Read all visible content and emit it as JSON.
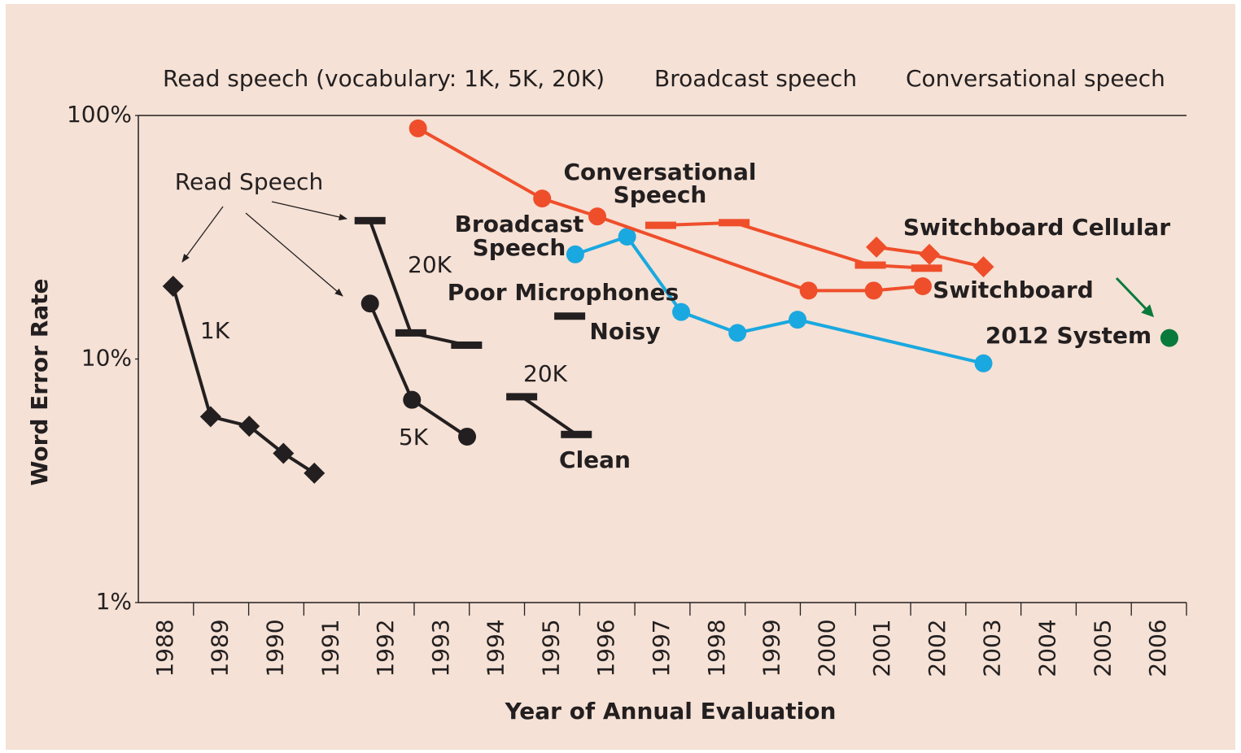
{
  "chart_data": {
    "type": "line",
    "log_y": true,
    "ylabel": "Word Error Rate",
    "xlabel": "Year of Annual Evaluation",
    "xlim": [
      1987.5,
      2006.5
    ],
    "xticks": [
      1988,
      1989,
      1990,
      1991,
      1992,
      1993,
      1994,
      1995,
      1996,
      1997,
      1998,
      1999,
      2000,
      2001,
      2002,
      2003,
      2004,
      2005,
      2006
    ],
    "ylim": [
      1,
      100
    ],
    "yticks": [
      {
        "value": 1,
        "label": "1%"
      },
      {
        "value": 10,
        "label": "10%"
      },
      {
        "value": 100,
        "label": "100%"
      }
    ],
    "legend": [
      {
        "text": "Read speech (vocabulary: 1K, 5K, 20K)",
        "color": "#231f20"
      },
      {
        "text": "Broadcast speech",
        "color": "#1aa8e0"
      },
      {
        "text": "Conversational speech",
        "color": "#ef4e2b"
      }
    ],
    "series": [
      {
        "marker": "diamond",
        "color": "#231f20",
        "x": [
          1988.13,
          1988.81,
          1989.51,
          1990.13,
          1990.69
        ],
        "values": [
          19.9,
          5.8,
          5.3,
          4.1,
          3.4
        ]
      },
      {
        "marker": "circle",
        "color": "#231f20",
        "x": [
          1991.7,
          1992.46,
          1993.46
        ],
        "values": [
          16.9,
          6.8,
          4.8
        ]
      },
      {
        "marker": "dash",
        "color": "#231f20",
        "x": [
          1991.7,
          1992.44,
          1993.45
        ],
        "values": [
          37,
          12.8,
          11.4
        ]
      },
      {
        "marker": "dash",
        "color": "#231f20",
        "x": [
          1995.32
        ],
        "values": [
          15
        ]
      },
      {
        "marker": "dash",
        "color": "#231f20",
        "x": [
          1994.45,
          1995.44
        ],
        "values": [
          7.0,
          4.9
        ]
      },
      {
        "marker": "circle",
        "color": "#1aa8e0",
        "x": [
          1995.42,
          1996.36,
          1997.34,
          1998.36,
          1999.45,
          2002.82
        ],
        "values": [
          26.9,
          31.8,
          15.6,
          12.8,
          14.5,
          9.6
        ]
      },
      {
        "marker": "circle",
        "color": "#ef4e2b",
        "x": [
          1992.57,
          1994.82,
          1995.82,
          1999.65,
          2000.83,
          2001.72
        ],
        "values": [
          88.5,
          45.6,
          38.5,
          19.1,
          19.1,
          19.9
        ]
      },
      {
        "marker": "dash",
        "color": "#ef4e2b",
        "x": [
          1996.97,
          1998.3,
          2000.77,
          2001.79
        ],
        "values": [
          35.4,
          36.3,
          24.3,
          23.6
        ]
      },
      {
        "marker": "diamond",
        "color": "#ef4e2b",
        "x": [
          2000.88,
          2001.84,
          2002.82
        ],
        "values": [
          28.8,
          26.9,
          23.9
        ]
      },
      {
        "marker": "circle",
        "color": "#0a7a3c",
        "x": [
          2006.19
        ],
        "values": [
          12.2
        ]
      }
    ],
    "annotations": [
      {
        "text": "Read Speech",
        "color": "#231f20",
        "bold": false
      },
      {
        "text": "1K",
        "color": "#231f20",
        "bold": false
      },
      {
        "text": "20K",
        "color": "#231f20",
        "bold": false
      },
      {
        "text": "5K",
        "color": "#231f20",
        "bold": false
      },
      {
        "text": "20K",
        "color": "#231f20",
        "bold": false
      },
      {
        "text": "Poor Microphones",
        "color": "#231f20",
        "bold": true
      },
      {
        "text": "Noisy",
        "color": "#a2a52b",
        "bold": true
      },
      {
        "text": "Clean",
        "color": "#a2a52b",
        "bold": true
      },
      {
        "text": "Conversational",
        "color": "#ef4e2b",
        "bold": true
      },
      {
        "text": "Speech",
        "color": "#ef4e2b",
        "bold": true
      },
      {
        "text": "Broadcast",
        "color": "#1aa8e0",
        "bold": true
      },
      {
        "text": "Speech",
        "color": "#1aa8e0",
        "bold": true
      },
      {
        "text": "Switchboard Cellular",
        "color": "#ef4e2b",
        "bold": true
      },
      {
        "text": "Switchboard",
        "color": "#ef4e2b",
        "bold": true
      },
      {
        "text": "2012 System",
        "color": "#0a7a3c",
        "bold": true
      }
    ]
  }
}
